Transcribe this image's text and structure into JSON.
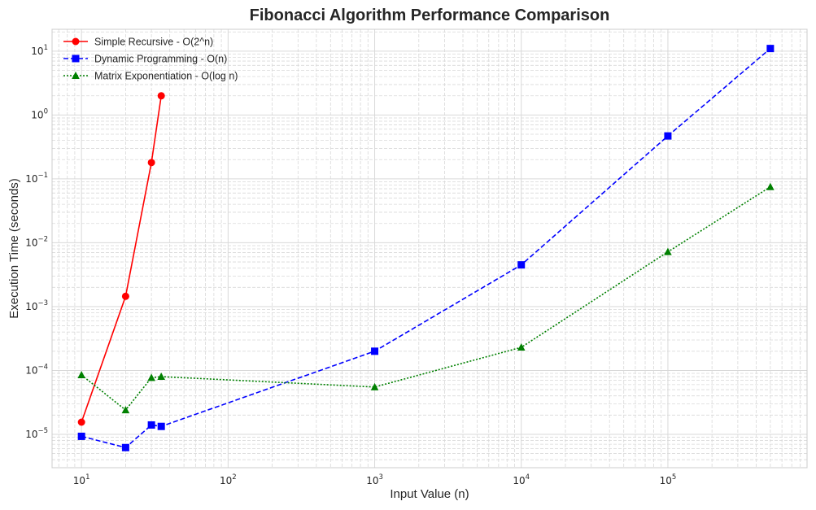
{
  "chart_data": {
    "type": "line",
    "title": "Fibonacci Algorithm Performance Comparison",
    "xlabel": "Input Value (n)",
    "ylabel": "Execution Time (seconds)",
    "xscale": "log",
    "yscale": "log",
    "xlim": [
      6.3,
      890000
    ],
    "ylim": [
      3e-06,
      22
    ],
    "xticks": [
      {
        "base": "10",
        "exp": "1"
      },
      {
        "base": "10",
        "exp": "2"
      },
      {
        "base": "10",
        "exp": "3"
      },
      {
        "base": "10",
        "exp": "4"
      },
      {
        "base": "10",
        "exp": "5"
      }
    ],
    "yticks": [
      {
        "base": "10",
        "exp": "−5"
      },
      {
        "base": "10",
        "exp": "−4"
      },
      {
        "base": "10",
        "exp": "−3"
      },
      {
        "base": "10",
        "exp": "−2"
      },
      {
        "base": "10",
        "exp": "−1"
      },
      {
        "base": "10",
        "exp": "0"
      },
      {
        "base": "10",
        "exp": "1"
      }
    ],
    "grid": true,
    "legend_position": "top-left",
    "series": [
      {
        "name": "Simple Recursive - O(2^n)",
        "color": "#ff0000",
        "linestyle": "solid",
        "marker": "circle",
        "x": [
          10,
          20,
          30,
          35
        ],
        "y": [
          1.55e-05,
          0.00145,
          0.18,
          2.0
        ]
      },
      {
        "name": "Dynamic Programming - O(n)",
        "color": "#0000ff",
        "linestyle": "dashed",
        "marker": "square",
        "x": [
          10,
          20,
          30,
          35,
          1000,
          10000,
          100000,
          500000
        ],
        "y": [
          9.3e-06,
          6.2e-06,
          1.4e-05,
          1.33e-05,
          0.0002,
          0.0045,
          0.47,
          11
        ]
      },
      {
        "name": "Matrix Exponentiation - O(log n)",
        "color": "#008000",
        "linestyle": "dotted",
        "marker": "triangle",
        "x": [
          10,
          20,
          30,
          35,
          1000,
          10000,
          100000,
          500000
        ],
        "y": [
          8.5e-05,
          2.4e-05,
          7.7e-05,
          8e-05,
          5.5e-05,
          0.00023,
          0.0072,
          0.075
        ]
      }
    ]
  }
}
